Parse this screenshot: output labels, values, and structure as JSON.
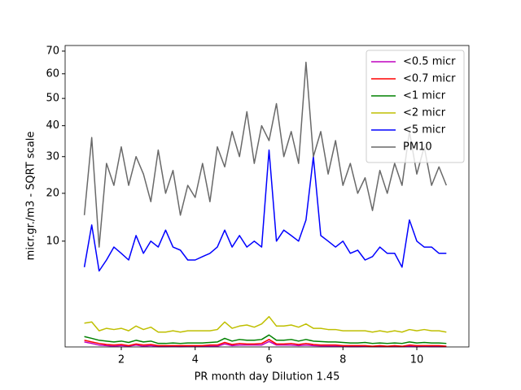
{
  "chart_data": {
    "type": "line",
    "xlabel": "PR month day  Dilution 1.45",
    "ylabel": "micr.gr./m3 - SQRT scale",
    "yscale": "sqrt",
    "legend": "upper right",
    "grid": false,
    "xlim": [
      0.48,
      11.41
    ],
    "ylim": [
      0.07,
      72.6
    ],
    "xticks": [
      2,
      4,
      6,
      8,
      10
    ],
    "yticks": [
      10,
      20,
      30,
      40,
      50,
      60,
      70
    ],
    "x": [
      1,
      1.2,
      1.4,
      1.6,
      1.8,
      2,
      2.2,
      2.4,
      2.6,
      2.8,
      3,
      3.2,
      3.4,
      3.6,
      3.8,
      4,
      4.2,
      4.4,
      4.6,
      4.8,
      5,
      5.2,
      5.4,
      5.6,
      5.8,
      6,
      6.2,
      6.4,
      6.6,
      6.8,
      7,
      7.2,
      7.4,
      7.6,
      7.8,
      8,
      8.2,
      8.4,
      8.6,
      8.8,
      9,
      9.2,
      9.4,
      9.6,
      9.8,
      10,
      10.2,
      10.4,
      10.6,
      10.8
    ],
    "series": [
      {
        "name": "<0.5 micr",
        "color": "#bf00bf",
        "values": [
          0.16,
          0.13,
          0.1,
          0.09,
          0.08,
          0.09,
          0.08,
          0.1,
          0.08,
          0.09,
          0.075,
          0.075,
          0.08,
          0.075,
          0.08,
          0.08,
          0.08,
          0.08,
          0.08,
          0.12,
          0.09,
          0.1,
          0.1,
          0.1,
          0.1,
          0.17,
          0.1,
          0.1,
          0.1,
          0.09,
          0.1,
          0.09,
          0.085,
          0.08,
          0.08,
          0.08,
          0.075,
          0.075,
          0.08,
          0.075,
          0.075,
          0.075,
          0.075,
          0.075,
          0.08,
          0.075,
          0.08,
          0.075,
          0.075,
          0.075
        ]
      },
      {
        "name": "<0.7 micr",
        "color": "#ff0000",
        "values": [
          0.2,
          0.16,
          0.13,
          0.11,
          0.1,
          0.11,
          0.09,
          0.12,
          0.1,
          0.11,
          0.09,
          0.09,
          0.09,
          0.09,
          0.09,
          0.09,
          0.09,
          0.1,
          0.1,
          0.15,
          0.11,
          0.13,
          0.12,
          0.12,
          0.13,
          0.22,
          0.12,
          0.12,
          0.13,
          0.11,
          0.13,
          0.11,
          0.1,
          0.1,
          0.1,
          0.09,
          0.09,
          0.09,
          0.09,
          0.08,
          0.09,
          0.08,
          0.09,
          0.08,
          0.1,
          0.09,
          0.09,
          0.09,
          0.09,
          0.08
        ]
      },
      {
        "name": "<1 micr",
        "color": "#008000",
        "values": [
          0.3,
          0.25,
          0.2,
          0.18,
          0.16,
          0.18,
          0.15,
          0.2,
          0.16,
          0.18,
          0.13,
          0.13,
          0.14,
          0.13,
          0.14,
          0.14,
          0.14,
          0.15,
          0.16,
          0.25,
          0.18,
          0.22,
          0.2,
          0.2,
          0.22,
          0.35,
          0.2,
          0.2,
          0.22,
          0.18,
          0.22,
          0.18,
          0.17,
          0.16,
          0.16,
          0.15,
          0.14,
          0.14,
          0.15,
          0.13,
          0.14,
          0.13,
          0.14,
          0.13,
          0.16,
          0.14,
          0.15,
          0.14,
          0.14,
          0.13
        ]
      },
      {
        "name": "<2 micr",
        "color": "#bfbf00",
        "values": [
          0.84,
          0.9,
          0.5,
          0.6,
          0.55,
          0.6,
          0.5,
          0.7,
          0.55,
          0.65,
          0.45,
          0.45,
          0.5,
          0.45,
          0.5,
          0.5,
          0.5,
          0.5,
          0.55,
          0.9,
          0.6,
          0.7,
          0.75,
          0.65,
          0.8,
          1.2,
          0.7,
          0.7,
          0.75,
          0.65,
          0.8,
          0.6,
          0.6,
          0.55,
          0.55,
          0.5,
          0.5,
          0.5,
          0.5,
          0.45,
          0.5,
          0.45,
          0.5,
          0.45,
          0.55,
          0.5,
          0.55,
          0.5,
          0.5,
          0.45
        ]
      },
      {
        "name": "<5 micr",
        "color": "#0000ff",
        "values": [
          6,
          13,
          5.5,
          7,
          9,
          8,
          7,
          11,
          8,
          10,
          9,
          12,
          9,
          8.5,
          7,
          7,
          7.5,
          8,
          9,
          12,
          9,
          11,
          9,
          10,
          9,
          32,
          10,
          12,
          11,
          10,
          14,
          30,
          11,
          10,
          9,
          10,
          8,
          8.5,
          7,
          7.5,
          9,
          8,
          8,
          6,
          14,
          10,
          9,
          9,
          8,
          8
        ]
      },
      {
        "name": "PM10",
        "color": "#696969",
        "values": [
          15,
          36,
          9,
          28,
          22,
          33,
          22,
          30,
          25,
          18,
          32,
          20,
          26,
          15,
          22,
          19,
          28,
          18,
          33,
          27,
          38,
          30,
          45,
          28,
          40,
          35,
          48,
          30,
          38,
          28,
          65,
          30,
          38,
          25,
          35,
          22,
          28,
          20,
          24,
          16,
          26,
          20,
          28,
          22,
          38,
          25,
          33,
          22,
          27,
          22
        ]
      }
    ]
  }
}
